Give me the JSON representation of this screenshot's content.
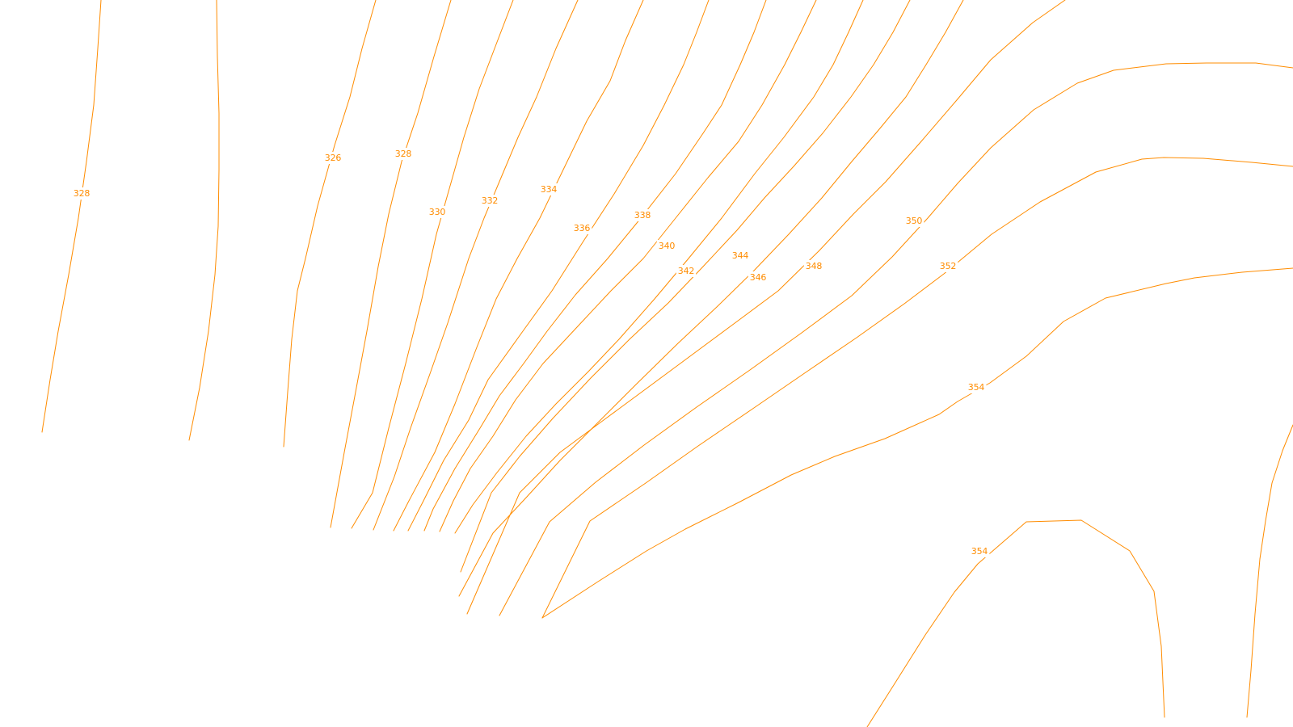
{
  "map": {
    "contour_color": "#ff8c00",
    "background_color": "#ffffff",
    "labels": [
      {
        "key": "l328a",
        "text": "328"
      },
      {
        "key": "l326",
        "text": "326"
      },
      {
        "key": "l328b",
        "text": "328"
      },
      {
        "key": "l330",
        "text": "330"
      },
      {
        "key": "l332",
        "text": "332"
      },
      {
        "key": "l334",
        "text": "334"
      },
      {
        "key": "l336",
        "text": "336"
      },
      {
        "key": "l338",
        "text": "338"
      },
      {
        "key": "l340",
        "text": "340"
      },
      {
        "key": "l342",
        "text": "342"
      },
      {
        "key": "l344",
        "text": "344"
      },
      {
        "key": "l346",
        "text": "346"
      },
      {
        "key": "l348",
        "text": "348"
      },
      {
        "key": "l350",
        "text": "350"
      },
      {
        "key": "l352",
        "text": "352"
      },
      {
        "key": "l354a",
        "text": "354"
      },
      {
        "key": "l354b",
        "text": "354"
      }
    ]
  }
}
